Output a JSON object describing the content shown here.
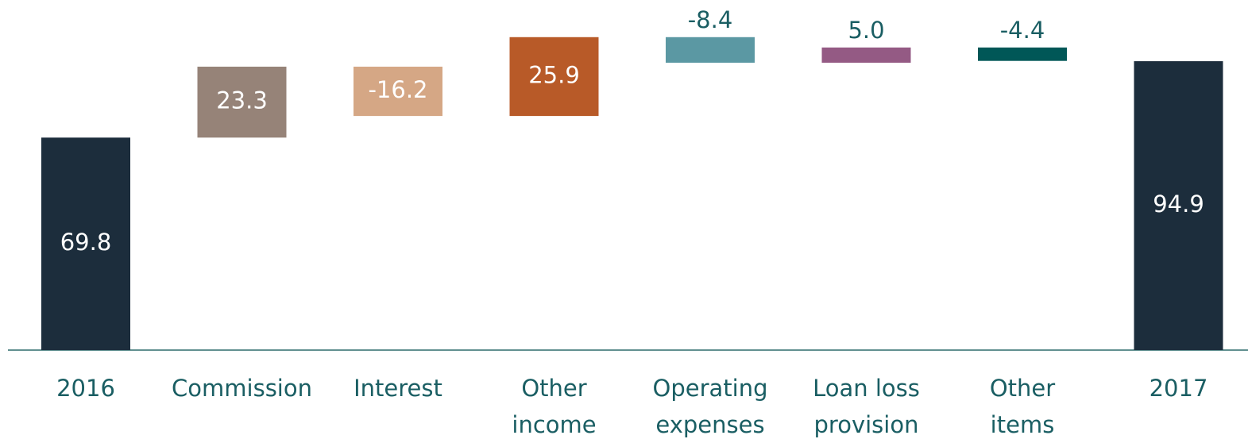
{
  "chart_data": {
    "type": "waterfall",
    "categories": [
      "2016",
      "Commission",
      "Interest",
      "Other income",
      "Operating expenses",
      "Loan loss provision",
      "Other items",
      "2017"
    ],
    "values": [
      69.8,
      23.3,
      -16.2,
      25.9,
      -8.4,
      5.0,
      -4.4,
      94.9
    ],
    "value_labels": [
      "69.8",
      "23.3",
      "-16.2",
      "25.9",
      "-8.4",
      "5.0",
      "-4.4",
      "94.9"
    ],
    "measures": [
      "absolute",
      "relative",
      "relative",
      "relative",
      "relative",
      "relative",
      "relative",
      "total"
    ],
    "colors": [
      "#1c2d3c",
      "#968378",
      "#d5a785",
      "#b85a28",
      "#5b98a3",
      "#945a84",
      "#005757",
      "#1c2d3c"
    ],
    "ylim": [
      0,
      115
    ]
  }
}
